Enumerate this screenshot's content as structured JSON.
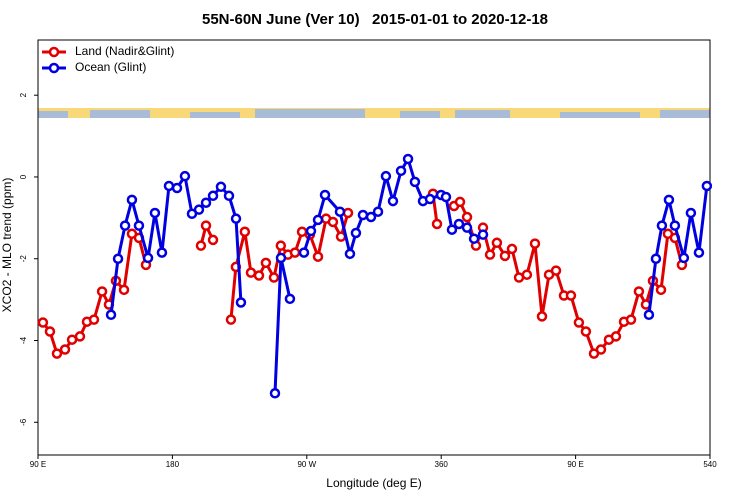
{
  "chart_data": {
    "type": "line",
    "title": "55N-60N June (Ver 10)   2015-01-01 to 2020-12-18",
    "xlabel": "Longitude (deg E)",
    "ylabel": "XCO2 - MLO trend (ppm)",
    "xlim": [
      90,
      540
    ],
    "ylim": [
      -6.8,
      3.35
    ],
    "xticks": [
      {
        "value": 90,
        "label": "90 E"
      },
      180,
      {
        "value": 270,
        "label": "90 W"
      },
      360,
      {
        "value": 450,
        "label": "90 E"
      },
      540
    ],
    "yticks": [
      -6,
      -4,
      -2,
      0,
      2
    ],
    "legend": "top-left",
    "series": [
      {
        "name": "Land (Nadir&Glint)",
        "color": "#e00000",
        "x": [
          93.3,
          98.0,
          102.7,
          108.1,
          112.8,
          118.1,
          122.8,
          127.5,
          132.9,
          137.5,
          142.2,
          147.6,
          152.9,
          157.6,
          162.3,
          null,
          199.1,
          202.5,
          207.2,
          null,
          219.2,
          222.5,
          228.5,
          232.6,
          238.0,
          242.6,
          248.0,
          252.6,
          257.4,
          262.1,
          266.8,
          272.1,
          277.5,
          282.9,
          287.5,
          292.9,
          297.6,
          null,
          354.5,
          357.2,
          null,
          368.6,
          372.6,
          377.3,
          383.3,
          388.0,
          392.7,
          397.3,
          402.7,
          407.4,
          412.1,
          417.4,
          422.8,
          427.5,
          432.2,
          436.9,
          442.2,
          446.9,
          452.2,
          456.9,
          462.3,
          467.0,
          472.3,
          477.0,
          482.4,
          487.1,
          492.4,
          497.1,
          501.8,
          507.2,
          511.8,
          516.5,
          521.2
        ],
        "values": [
          -3.56,
          -3.78,
          -4.32,
          -4.22,
          -3.98,
          -3.9,
          -3.54,
          -3.49,
          -2.8,
          -3.12,
          -2.54,
          -2.76,
          -1.39,
          -1.49,
          -2.15,
          null,
          -1.68,
          -1.19,
          -1.54,
          null,
          -3.49,
          -2.2,
          -1.34,
          -2.34,
          -2.41,
          -2.1,
          -2.46,
          -1.68,
          -1.9,
          -1.85,
          -1.34,
          -1.41,
          -1.95,
          -1.02,
          -1.1,
          -1.46,
          -0.88,
          null,
          -0.41,
          -1.15,
          null,
          -0.71,
          -0.61,
          -0.98,
          -1.68,
          -1.24,
          -1.9,
          -1.61,
          -1.93,
          -1.76,
          -2.46,
          -2.39,
          -1.63,
          -3.41,
          -2.39,
          -2.29,
          -2.9,
          -2.9,
          -3.56,
          -3.78,
          -4.32,
          -4.22,
          -3.98,
          -3.9,
          -3.54,
          -3.49,
          -2.8,
          -3.12,
          -2.54,
          -2.76,
          -1.39,
          -1.49,
          -2.15
        ]
      },
      {
        "name": "Ocean (Glint)",
        "color": "#0000e0",
        "x": [
          138.9,
          143.6,
          148.3,
          152.9,
          157.6,
          163.7,
          168.3,
          173.0,
          177.7,
          183.1,
          188.4,
          193.1,
          197.8,
          202.5,
          207.2,
          212.5,
          217.9,
          222.6,
          225.9,
          null,
          248.7,
          252.7,
          258.7,
          null,
          268.1,
          272.8,
          277.5,
          282.2,
          292.2,
          298.9,
          302.9,
          307.6,
          313.0,
          317.7,
          323.0,
          327.7,
          333.1,
          337.8,
          342.4,
          347.8,
          352.5,
          359.9,
          363.2,
          367.2,
          371.9,
          377.3,
          382.0,
          388.0,
          null,
          499.1,
          503.8,
          507.8,
          512.5,
          516.5,
          522.5,
          527.2,
          532.6,
          537.9
        ],
        "values": [
          -3.37,
          -2.0,
          -1.19,
          -0.56,
          -1.19,
          -1.98,
          -0.88,
          -1.85,
          -0.22,
          -0.27,
          0.02,
          -0.9,
          -0.8,
          -0.63,
          -0.46,
          -0.24,
          -0.46,
          -1.02,
          -3.07,
          null,
          -5.29,
          -1.98,
          -2.98,
          null,
          -1.85,
          -1.32,
          -1.05,
          -0.44,
          -0.85,
          -1.88,
          -1.37,
          -0.93,
          -0.98,
          -0.85,
          0.02,
          -0.59,
          0.15,
          0.44,
          -0.12,
          -0.59,
          -0.54,
          -0.44,
          -0.49,
          -1.29,
          -1.15,
          -1.24,
          -1.51,
          -1.41,
          null,
          -3.37,
          -2.0,
          -1.19,
          -0.56,
          -1.19,
          -1.98,
          -0.88,
          -1.85,
          -0.22
        ]
      }
    ]
  }
}
